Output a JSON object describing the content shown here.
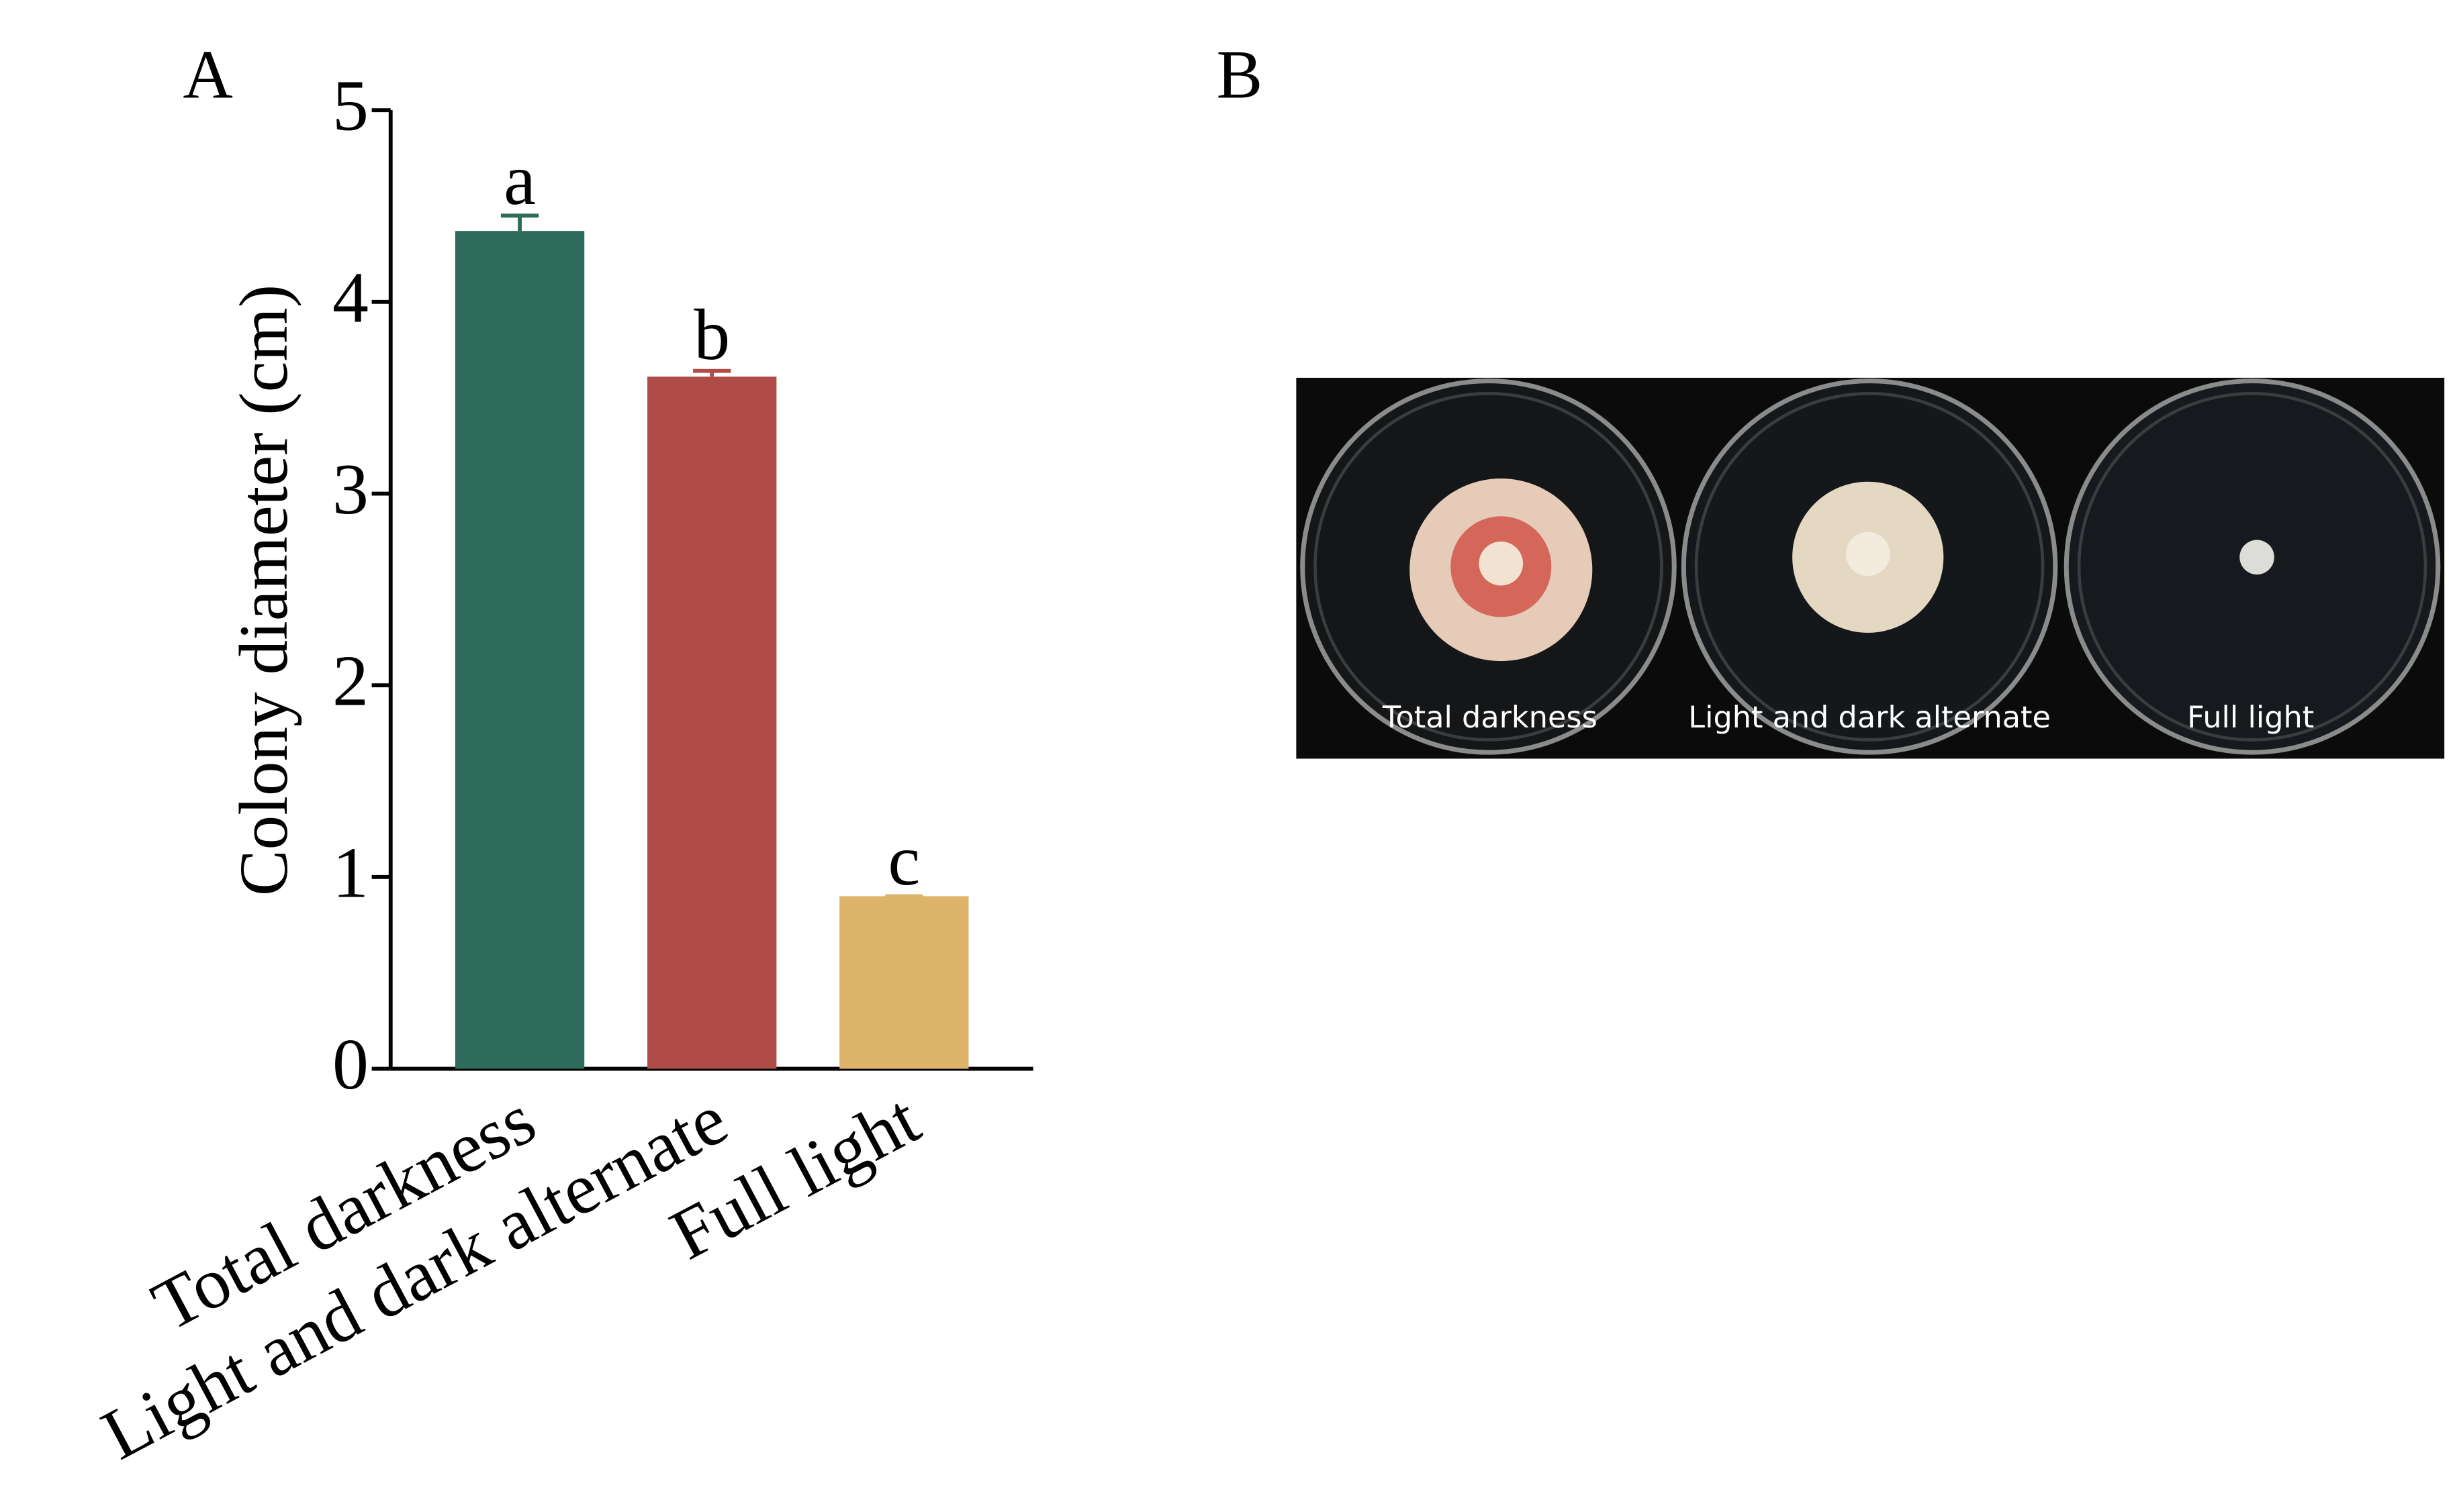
{
  "chart_data": {
    "type": "bar",
    "panel_label": "A",
    "ylabel": "Colony diameter (cm)",
    "categories": [
      "Total darkness",
      "Light and dark alternate",
      "Full light"
    ],
    "values": [
      4.37,
      3.61,
      0.9
    ],
    "errors": [
      0.08,
      0.03,
      0
    ],
    "annotations": [
      "a",
      "b",
      "c"
    ],
    "colors": [
      "#2e6b5a",
      "#b04c47",
      "#deb36a"
    ],
    "ylim": [
      0,
      5
    ],
    "yticks": [
      0,
      1,
      2,
      3,
      4,
      5
    ]
  },
  "panel_b": {
    "label": "B",
    "plate_labels": [
      "Total darkness",
      "Light and dark alternate",
      "Full light"
    ]
  }
}
